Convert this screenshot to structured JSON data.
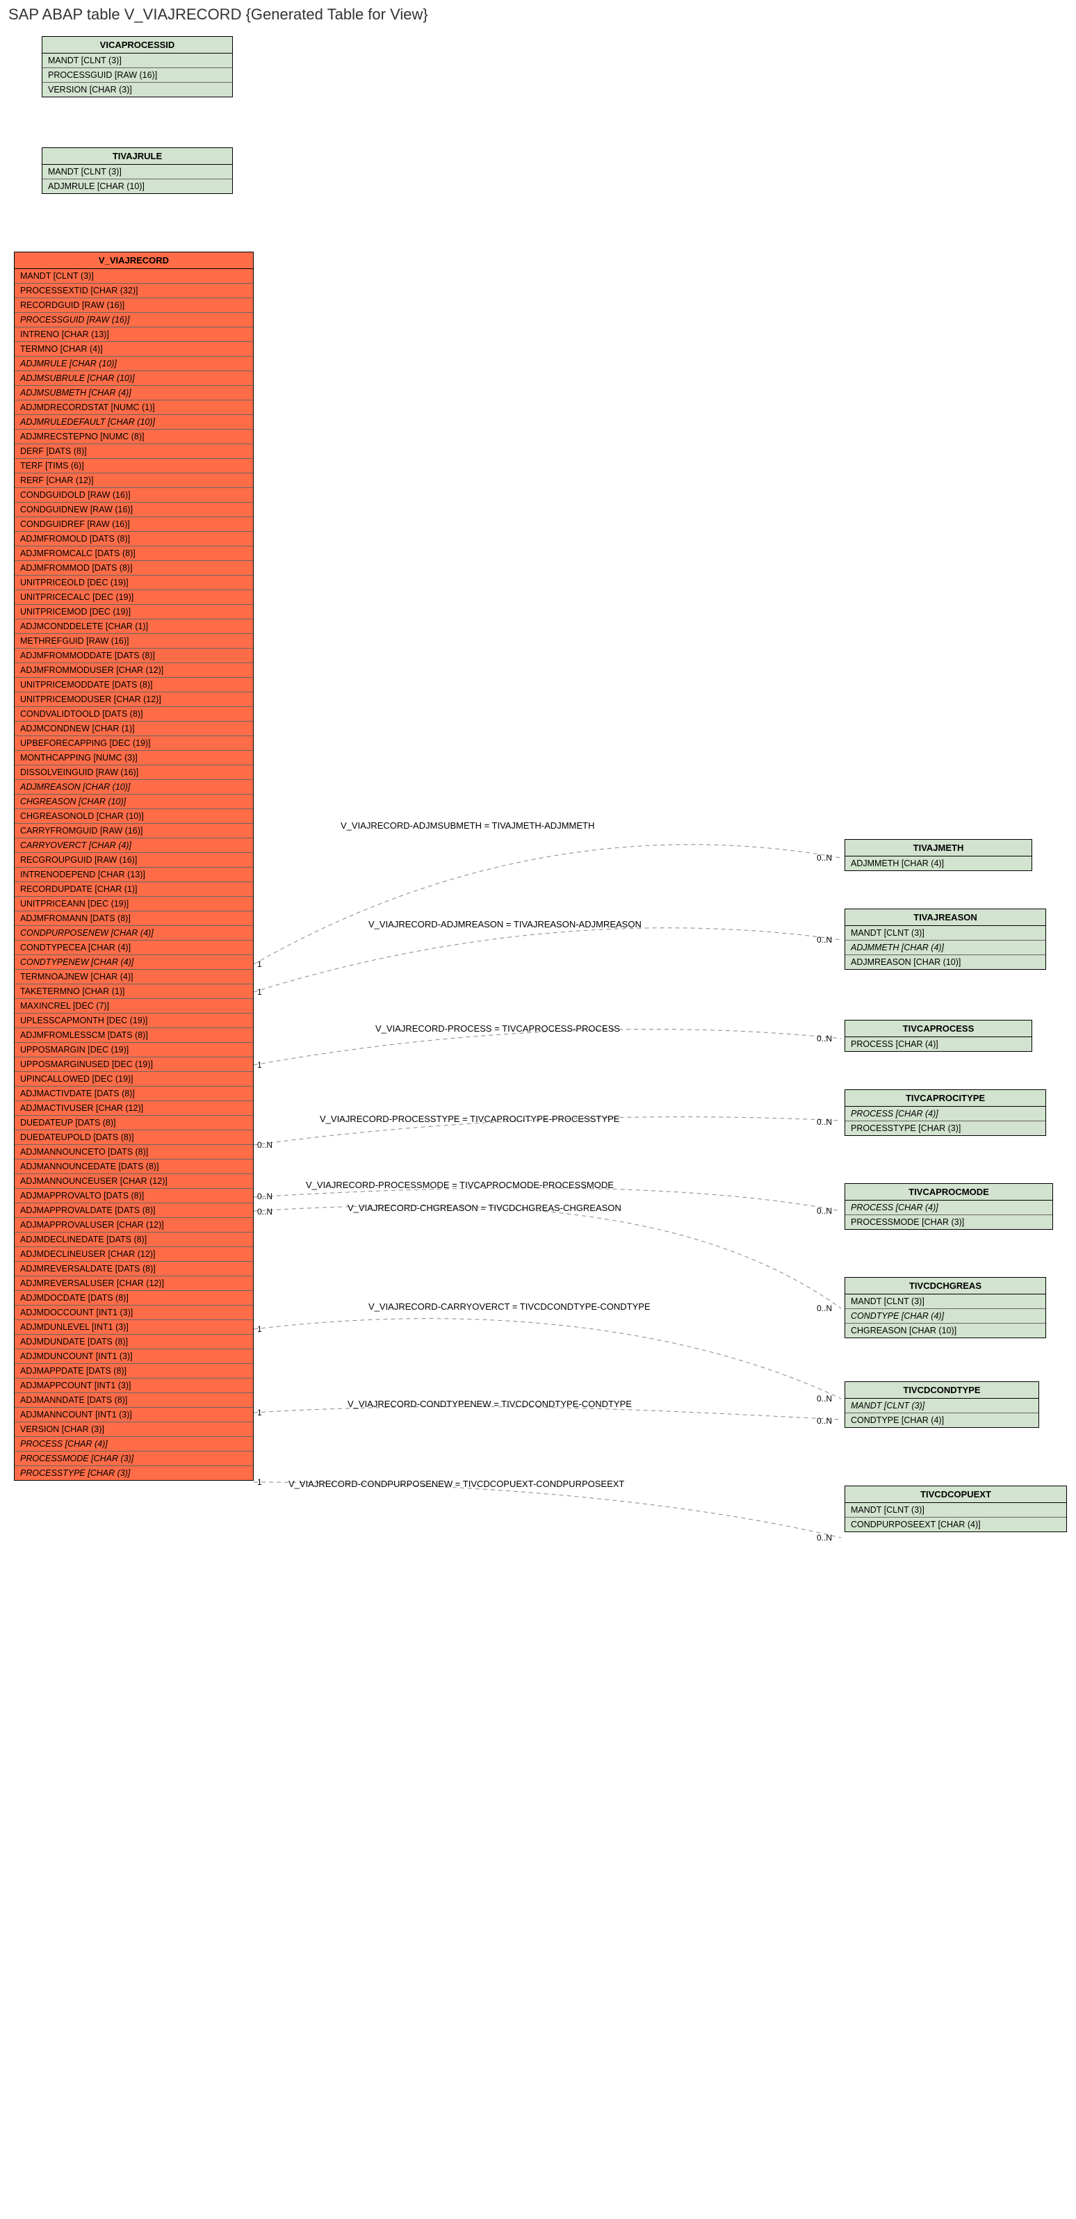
{
  "title": "SAP ABAP table V_VIAJRECORD {Generated Table for View}",
  "colors": {
    "green": "#d2e3cf",
    "orange": "#ff6c48",
    "line": "#888888",
    "text": "#000000",
    "bg": "#ffffff"
  },
  "entities": {
    "vicaprocessid": {
      "name": "VICAPROCESSID",
      "style": "green",
      "fields": [
        {
          "t": "MANDT [CLNT (3)]"
        },
        {
          "t": "PROCESSGUID [RAW (16)]"
        },
        {
          "t": "VERSION [CHAR (3)]"
        }
      ]
    },
    "tivajrule": {
      "name": "TIVAJRULE",
      "style": "green",
      "fields": [
        {
          "t": "MANDT [CLNT (3)]"
        },
        {
          "t": "ADJMRULE [CHAR (10)]"
        }
      ]
    },
    "v_viajrecord": {
      "name": "V_VIAJRECORD",
      "style": "orange",
      "fields": [
        {
          "t": "MANDT [CLNT (3)]"
        },
        {
          "t": "PROCESSEXTID [CHAR (32)]"
        },
        {
          "t": "RECORDGUID [RAW (16)]"
        },
        {
          "t": "PROCESSGUID [RAW (16)]",
          "i": true
        },
        {
          "t": "INTRENO [CHAR (13)]"
        },
        {
          "t": "TERMNO [CHAR (4)]"
        },
        {
          "t": "ADJMRULE [CHAR (10)]",
          "i": true
        },
        {
          "t": "ADJMSUBRULE [CHAR (10)]",
          "i": true
        },
        {
          "t": "ADJMSUBMETH [CHAR (4)]",
          "i": true
        },
        {
          "t": "ADJMDRECORDSTAT [NUMC (1)]"
        },
        {
          "t": "ADJMRULEDEFAULT [CHAR (10)]",
          "i": true
        },
        {
          "t": "ADJMRECSTEPNO [NUMC (8)]"
        },
        {
          "t": "DERF [DATS (8)]"
        },
        {
          "t": "TERF [TIMS (6)]"
        },
        {
          "t": "RERF [CHAR (12)]"
        },
        {
          "t": "CONDGUIDOLD [RAW (16)]"
        },
        {
          "t": "CONDGUIDNEW [RAW (16)]"
        },
        {
          "t": "CONDGUIDREF [RAW (16)]"
        },
        {
          "t": "ADJMFROMOLD [DATS (8)]"
        },
        {
          "t": "ADJMFROMCALC [DATS (8)]"
        },
        {
          "t": "ADJMFROMMOD [DATS (8)]"
        },
        {
          "t": "UNITPRICEOLD [DEC (19)]"
        },
        {
          "t": "UNITPRICECALC [DEC (19)]"
        },
        {
          "t": "UNITPRICEMOD [DEC (19)]"
        },
        {
          "t": "ADJMCONDDELETE [CHAR (1)]"
        },
        {
          "t": "METHREFGUID [RAW (16)]"
        },
        {
          "t": "ADJMFROMMODDATE [DATS (8)]"
        },
        {
          "t": "ADJMFROMMODUSER [CHAR (12)]"
        },
        {
          "t": "UNITPRICEMODDATE [DATS (8)]"
        },
        {
          "t": "UNITPRICEMODUSER [CHAR (12)]"
        },
        {
          "t": "CONDVALIDTOOLD [DATS (8)]"
        },
        {
          "t": "ADJMCONDNEW [CHAR (1)]"
        },
        {
          "t": "UPBEFORECAPPING [DEC (19)]"
        },
        {
          "t": "MONTHCAPPING [NUMC (3)]"
        },
        {
          "t": "DISSOLVEINGUID [RAW (16)]"
        },
        {
          "t": "ADJMREASON [CHAR (10)]",
          "i": true
        },
        {
          "t": "CHGREASON [CHAR (10)]",
          "i": true
        },
        {
          "t": "CHGREASONOLD [CHAR (10)]"
        },
        {
          "t": "CARRYFROMGUID [RAW (16)]"
        },
        {
          "t": "CARRYOVERCT [CHAR (4)]",
          "i": true
        },
        {
          "t": "RECGROUPGUID [RAW (16)]"
        },
        {
          "t": "INTRENODEPEND [CHAR (13)]"
        },
        {
          "t": "RECORDUPDATE [CHAR (1)]"
        },
        {
          "t": "UNITPRICEANN [DEC (19)]"
        },
        {
          "t": "ADJMFROMANN [DATS (8)]"
        },
        {
          "t": "CONDPURPOSENEW [CHAR (4)]",
          "i": true
        },
        {
          "t": "CONDTYPECEA [CHAR (4)]"
        },
        {
          "t": "CONDTYPENEW [CHAR (4)]",
          "i": true
        },
        {
          "t": "TERMNOAJNEW [CHAR (4)]"
        },
        {
          "t": "TAKETERMNO [CHAR (1)]"
        },
        {
          "t": "MAXINCREL [DEC (7)]"
        },
        {
          "t": "UPLESSCAPMONTH [DEC (19)]"
        },
        {
          "t": "ADJMFROMLESSCM [DATS (8)]"
        },
        {
          "t": "UPPOSMARGIN [DEC (19)]"
        },
        {
          "t": "UPPOSMARGINUSED [DEC (19)]"
        },
        {
          "t": "UPINCALLOWED [DEC (19)]"
        },
        {
          "t": "ADJMACTIVDATE [DATS (8)]"
        },
        {
          "t": "ADJMACTIVUSER [CHAR (12)]"
        },
        {
          "t": "DUEDATEUP [DATS (8)]"
        },
        {
          "t": "DUEDATEUPOLD [DATS (8)]"
        },
        {
          "t": "ADJMANNOUNCETO [DATS (8)]"
        },
        {
          "t": "ADJMANNOUNCEDATE [DATS (8)]"
        },
        {
          "t": "ADJMANNOUNCEUSER [CHAR (12)]"
        },
        {
          "t": "ADJMAPPROVALTO [DATS (8)]"
        },
        {
          "t": "ADJMAPPROVALDATE [DATS (8)]"
        },
        {
          "t": "ADJMAPPROVALUSER [CHAR (12)]"
        },
        {
          "t": "ADJMDECLINEDATE [DATS (8)]"
        },
        {
          "t": "ADJMDECLINEUSER [CHAR (12)]"
        },
        {
          "t": "ADJMREVERSALDATE [DATS (8)]"
        },
        {
          "t": "ADJMREVERSALUSER [CHAR (12)]"
        },
        {
          "t": "ADJMDOCDATE [DATS (8)]"
        },
        {
          "t": "ADJMDOCCOUNT [INT1 (3)]"
        },
        {
          "t": "ADJMDUNLEVEL [INT1 (3)]"
        },
        {
          "t": "ADJMDUNDATE [DATS (8)]"
        },
        {
          "t": "ADJMDUNCOUNT [INT1 (3)]"
        },
        {
          "t": "ADJMAPPDATE [DATS (8)]"
        },
        {
          "t": "ADJMAPPCOUNT [INT1 (3)]"
        },
        {
          "t": "ADJMANNDATE [DATS (8)]"
        },
        {
          "t": "ADJMANNCOUNT [INT1 (3)]"
        },
        {
          "t": "VERSION [CHAR (3)]"
        },
        {
          "t": "PROCESS [CHAR (4)]",
          "i": true
        },
        {
          "t": "PROCESSMODE [CHAR (3)]",
          "i": true
        },
        {
          "t": "PROCESSTYPE [CHAR (3)]",
          "i": true
        }
      ]
    },
    "tivajmeth": {
      "name": "TIVAJMETH",
      "style": "green",
      "fields": [
        {
          "t": "ADJMMETH [CHAR (4)]"
        }
      ]
    },
    "tivajreason": {
      "name": "TIVAJREASON",
      "style": "green",
      "fields": [
        {
          "t": "MANDT [CLNT (3)]"
        },
        {
          "t": "ADJMMETH [CHAR (4)]",
          "i": true
        },
        {
          "t": "ADJMREASON [CHAR (10)]"
        }
      ]
    },
    "tivcaprocess": {
      "name": "TIVCAPROCESS",
      "style": "green",
      "fields": [
        {
          "t": "PROCESS [CHAR (4)]"
        }
      ]
    },
    "tivcaprocitype": {
      "name": "TIVCAPROCITYPE",
      "style": "green",
      "fields": [
        {
          "t": "PROCESS [CHAR (4)]",
          "i": true
        },
        {
          "t": "PROCESSTYPE [CHAR (3)]"
        }
      ]
    },
    "tivcaprocmode": {
      "name": "TIVCAPROCMODE",
      "style": "green",
      "fields": [
        {
          "t": "PROCESS [CHAR (4)]",
          "i": true
        },
        {
          "t": "PROCESSMODE [CHAR (3)]"
        }
      ]
    },
    "tivcdchgreas": {
      "name": "TIVCDCHGREAS",
      "style": "green",
      "fields": [
        {
          "t": "MANDT [CLNT (3)]"
        },
        {
          "t": "CONDTYPE [CHAR (4)]",
          "i": true
        },
        {
          "t": "CHGREASON [CHAR (10)]"
        }
      ]
    },
    "tivcdcondtype": {
      "name": "TIVCDCONDTYPE",
      "style": "green",
      "fields": [
        {
          "t": "MANDT [CLNT (3)]",
          "i": true
        },
        {
          "t": "CONDTYPE [CHAR (4)]"
        }
      ]
    },
    "tivcdcopuext": {
      "name": "TIVCDCOPUEXT",
      "style": "green",
      "fields": [
        {
          "t": "MANDT [CLNT (3)]"
        },
        {
          "t": "CONDPURPOSEEXT [CHAR (4)]"
        }
      ]
    }
  },
  "relations": [
    {
      "text": "V_VIAJRECORD-ADJMSUBMETH = TIVAJMETH-ADJMMETH",
      "c1": "1",
      "c2": "0..N"
    },
    {
      "text": "V_VIAJRECORD-ADJMREASON = TIVAJREASON-ADJMREASON",
      "c1": "1",
      "c2": "0..N"
    },
    {
      "text": "V_VIAJRECORD-PROCESS = TIVCAPROCESS-PROCESS",
      "c1": "1",
      "c2": "0..N"
    },
    {
      "text": "V_VIAJRECORD-PROCESSTYPE = TIVCAPROCITYPE-PROCESSTYPE",
      "c1": "0..N",
      "c2": "0..N"
    },
    {
      "text": "V_VIAJRECORD-PROCESSMODE = TIVCAPROCMODE-PROCESSMODE",
      "c1": "0..N",
      "c2": "0..N"
    },
    {
      "text": "V_VIAJRECORD-CHGREASON = TIVCDCHGREAS-CHGREASON",
      "c1": "0..N",
      "c2": "0..N"
    },
    {
      "text": "V_VIAJRECORD-CARRYOVERCT = TIVCDCONDTYPE-CONDTYPE",
      "c1": "1",
      "c2": "0..N"
    },
    {
      "text": "V_VIAJRECORD-CONDTYPENEW = TIVCDCONDTYPE-CONDTYPE",
      "c1": "1",
      "c2": "0..N"
    },
    {
      "text": "V_VIAJRECORD-CONDPURPOSENEW = TIVCDCOPUEXT-CONDPURPOSEEXT",
      "c1": "1",
      "c2": "0..N"
    }
  ]
}
